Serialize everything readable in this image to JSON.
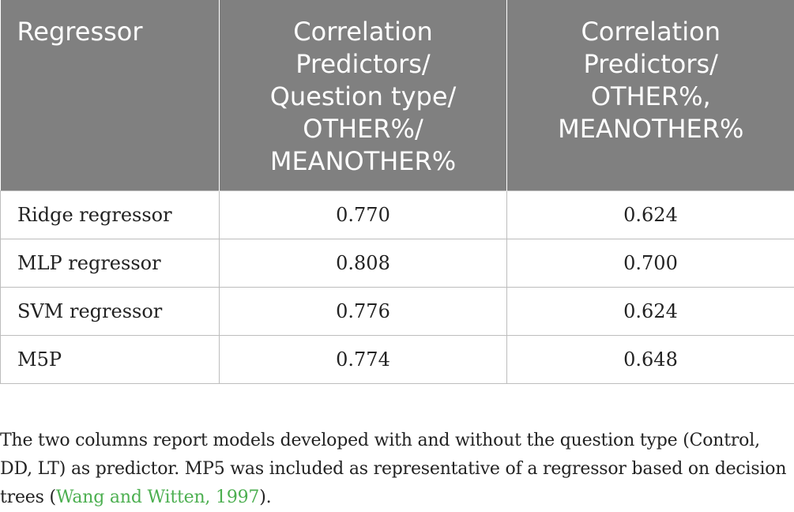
{
  "table": {
    "headers": [
      "Regressor",
      "Correlation Predictors/ Question type/ OTHER%/ MEANOTHER%",
      "Correlation Predictors/ OTHER%, MEANOTHER%"
    ],
    "header_lines": {
      "col1": [
        "Regressor"
      ],
      "col2": [
        "Correlation",
        "Predictors/",
        "Question type/",
        "OTHER%/",
        "MEANOTHER%"
      ],
      "col3": [
        "Correlation",
        "Predictors/",
        "OTHER%,",
        "MEANOTHER%"
      ]
    },
    "rows": [
      {
        "regressor": "Ridge regressor",
        "with_qtype": "0.770",
        "without_qtype": "0.624"
      },
      {
        "regressor": "MLP regressor",
        "with_qtype": "0.808",
        "without_qtype": "0.700"
      },
      {
        "regressor": "SVM regressor",
        "with_qtype": "0.776",
        "without_qtype": "0.624"
      },
      {
        "regressor": "M5P",
        "with_qtype": "0.774",
        "without_qtype": "0.648"
      }
    ]
  },
  "footnote": {
    "text_before": "The two columns report models developed with and without the question type (Control, DD, LT) as predictor. MP5 was included as representative of a regressor based on decision trees (",
    "citation": "Wang and Witten, 1997",
    "text_after": ")."
  },
  "colors": {
    "header_bg": "#808080",
    "header_text": "#ffffff",
    "citation": "#4caf50",
    "border": "#bdbdbd"
  }
}
